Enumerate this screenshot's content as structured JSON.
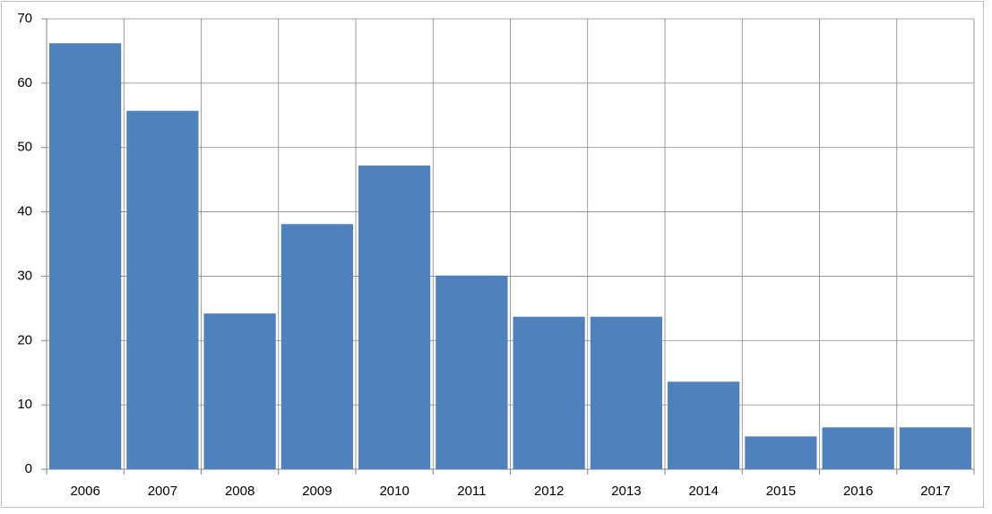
{
  "chart_data": {
    "type": "bar",
    "categories": [
      "2006",
      "2007",
      "2008",
      "2009",
      "2010",
      "2011",
      "2012",
      "2013",
      "2014",
      "2015",
      "2016",
      "2017"
    ],
    "values": [
      66.2,
      55.7,
      24.2,
      38.1,
      47.2,
      30.1,
      23.7,
      23.7,
      13.6,
      5.1,
      6.5,
      6.5
    ],
    "color": "#4f81bd",
    "ylim": [
      0,
      70
    ],
    "yticks": [
      0,
      10,
      20,
      30,
      40,
      50,
      60,
      70
    ],
    "grid": true
  }
}
